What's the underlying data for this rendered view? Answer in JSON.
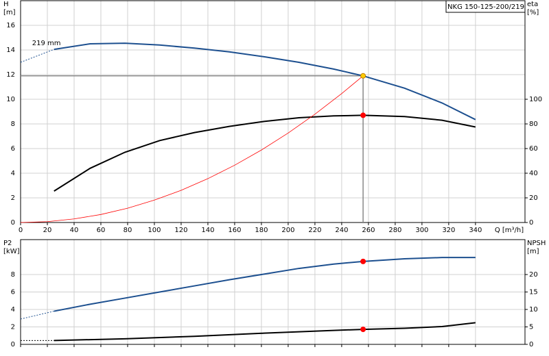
{
  "chart_data": [
    {
      "type": "line",
      "title": "NKG 150-125-200/219",
      "annotation": "219 mm",
      "ylabel": [
        "H",
        "[m]"
      ],
      "y2label": [
        "eta",
        "[%]"
      ],
      "xlabel": "Q [m³/h]",
      "xlim": [
        0,
        377
      ],
      "xticks": [
        0,
        20,
        40,
        60,
        80,
        100,
        120,
        140,
        160,
        180,
        200,
        220,
        240,
        260,
        280,
        300,
        320,
        340
      ],
      "ylim": [
        0,
        18
      ],
      "yticks": [
        0,
        2,
        4,
        6,
        8,
        10,
        12,
        14,
        16
      ],
      "y2lim": [
        0,
        180
      ],
      "y2ticks": [
        0,
        20,
        40,
        60,
        80,
        100
      ],
      "grid": true,
      "series": [
        {
          "color": "#1c4f8f",
          "width": 2,
          "x": [
            25,
            52,
            78,
            104,
            130,
            156,
            182,
            208,
            234,
            256,
            287,
            315,
            340
          ],
          "values": [
            14.05,
            14.5,
            14.55,
            14.4,
            14.15,
            13.85,
            13.45,
            13.0,
            12.45,
            11.9,
            10.9,
            9.7,
            8.35
          ]
        },
        {
          "color": "#1c4f8f",
          "width": 1,
          "style": "dashed",
          "x": [
            0,
            25
          ],
          "values": [
            13.0,
            14.05
          ]
        },
        {
          "color": "#000000",
          "width": 2,
          "axis": "y2",
          "x": [
            25,
            52,
            78,
            104,
            130,
            156,
            182,
            208,
            234,
            256,
            287,
            315,
            340
          ],
          "values": [
            25.5,
            44,
            57,
            66.5,
            73,
            78,
            82,
            85,
            86.5,
            87,
            86,
            83,
            77.5
          ]
        },
        {
          "color": "#ff0000",
          "width": 0.8,
          "x": [
            0,
            20,
            40,
            60,
            80,
            100,
            120,
            140,
            160,
            180,
            200,
            220,
            240,
            256
          ],
          "values": [
            0,
            0.07,
            0.29,
            0.65,
            1.16,
            1.82,
            2.61,
            3.56,
            4.65,
            5.88,
            7.26,
            8.79,
            10.46,
            11.9
          ]
        }
      ],
      "markers": [
        {
          "x": 256,
          "y": 11.9,
          "color": "#ffcc00",
          "crosshair": true
        },
        {
          "x": 256,
          "y": 87,
          "axis": "y2",
          "color": "#ff0000"
        }
      ]
    },
    {
      "type": "line",
      "ylabel": [
        "P2",
        "[kW]"
      ],
      "y2label": [
        "NPSH",
        "[m]"
      ],
      "xlim": [
        0,
        377
      ],
      "ylim": [
        0,
        12
      ],
      "yticks": [
        0,
        2,
        4,
        6,
        8
      ],
      "y2lim": [
        0,
        30
      ],
      "y2ticks": [
        0,
        5,
        10,
        15,
        20
      ],
      "grid": true,
      "series": [
        {
          "color": "#1c4f8f",
          "width": 2,
          "x": [
            25,
            52,
            78,
            104,
            130,
            156,
            182,
            208,
            234,
            256,
            287,
            315,
            340
          ],
          "values": [
            3.8,
            4.6,
            5.3,
            6.0,
            6.7,
            7.4,
            8.05,
            8.7,
            9.2,
            9.5,
            9.8,
            9.95,
            9.95
          ]
        },
        {
          "color": "#1c4f8f",
          "width": 1,
          "style": "dashed",
          "x": [
            0,
            25
          ],
          "values": [
            2.9,
            3.8
          ]
        },
        {
          "color": "#000000",
          "width": 2,
          "axis": "y2",
          "x": [
            25,
            78,
            130,
            182,
            234,
            256,
            287,
            315,
            340
          ],
          "values": [
            1.1,
            1.6,
            2.3,
            3.2,
            4.0,
            4.3,
            4.6,
            5.1,
            6.2
          ]
        },
        {
          "color": "#000000",
          "width": 1,
          "style": "dashed",
          "axis": "y2",
          "x": [
            0,
            25
          ],
          "values": [
            1.1,
            1.1
          ]
        }
      ],
      "markers": [
        {
          "x": 256,
          "y": 9.5,
          "color": "#ff0000"
        },
        {
          "x": 256,
          "y": 4.3,
          "axis": "y2",
          "color": "#ff0000"
        }
      ]
    }
  ]
}
